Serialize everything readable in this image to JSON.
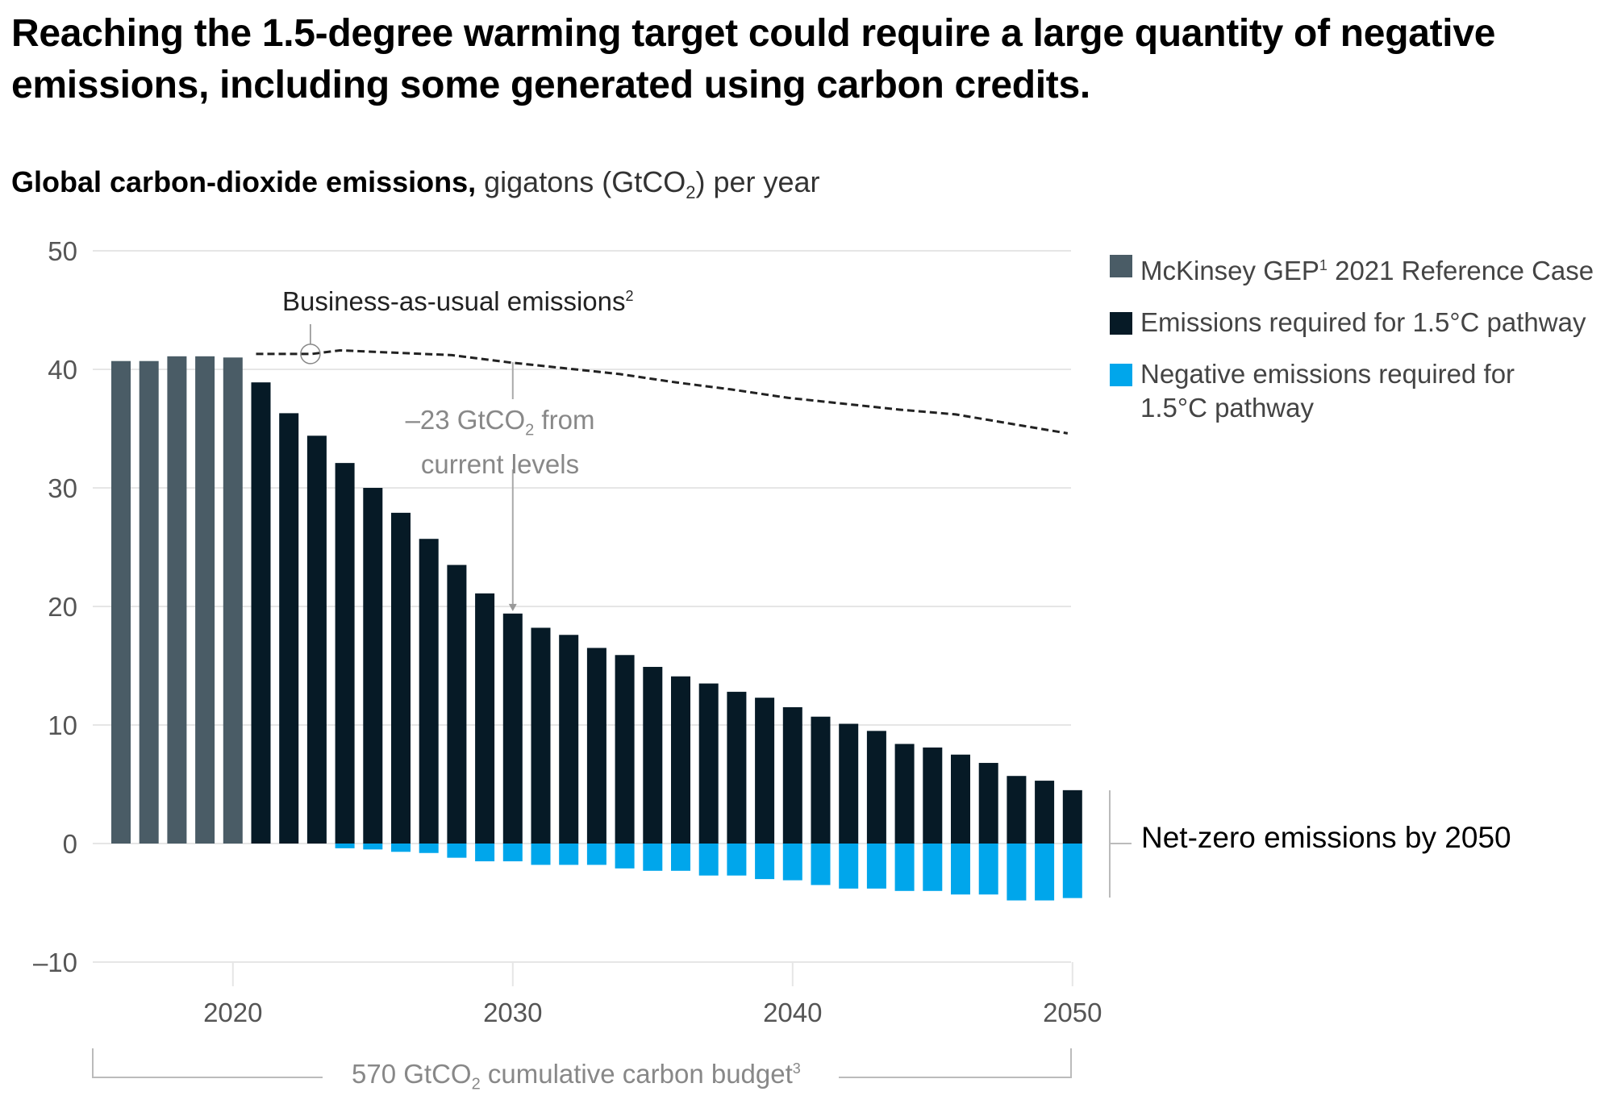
{
  "title": "Reaching the 1.5-degree warming target could require a large quantity of negative emissions, including some generated using carbon credits.",
  "subtitle": {
    "bold": "Global carbon-dioxide emissions,",
    "light_prefix": " gigatons (GtCO",
    "light_sub": "2",
    "light_suffix": ") per year"
  },
  "legend": [
    {
      "label_pre": "McKinsey GEP",
      "sup": "1",
      "label_post": " 2021 Reference Case",
      "color": "#4a5c66"
    },
    {
      "label_pre": "Emissions required for 1.5°C pathway",
      "sup": "",
      "label_post": "",
      "color": "#061a26"
    },
    {
      "label_pre": "Negative emissions required for 1.5°C pathway",
      "sup": "",
      "label_post": "",
      "color": "#00a6eb"
    }
  ],
  "annotations": {
    "bau_label": "Business-as-usual emissions",
    "bau_sup": "2",
    "delta_line1_pre": "–23 GtCO",
    "delta_line1_sub": "2",
    "delta_line1_post": " from",
    "delta_line2": "current levels",
    "net_zero": "Net-zero emissions by 2050",
    "budget_pre": "570 GtCO",
    "budget_sub": "2",
    "budget_post": " cumulative carbon budget",
    "budget_sup": "3"
  },
  "colors": {
    "reference": "#4a5c66",
    "pathway": "#061a26",
    "negative": "#00a6eb",
    "grid": "#e6e6e6",
    "bau_line": "#222222"
  },
  "chart_data": {
    "type": "bar",
    "title": "Reaching the 1.5-degree warming target could require a large quantity of negative emissions, including some generated using carbon credits.",
    "ylabel": "Global carbon-dioxide emissions, gigatons (GtCO2) per year",
    "xlabel": "",
    "ylim": [
      -10,
      50
    ],
    "yticks": [
      50,
      40,
      30,
      20,
      10,
      0,
      -10
    ],
    "ytick_labels": [
      "50",
      "40",
      "30",
      "20",
      "10",
      "0",
      "–10"
    ],
    "xticks": [
      2020,
      2030,
      2040,
      2050
    ],
    "xtick_labels": [
      "2020",
      "2030",
      "2040",
      "2050"
    ],
    "grid": true,
    "legend_position": "right",
    "x": [
      2016,
      2017,
      2018,
      2019,
      2020,
      2021,
      2022,
      2023,
      2024,
      2025,
      2026,
      2027,
      2028,
      2029,
      2030,
      2031,
      2032,
      2033,
      2034,
      2035,
      2036,
      2037,
      2038,
      2039,
      2040,
      2041,
      2042,
      2043,
      2044,
      2045,
      2046,
      2047,
      2048,
      2049,
      2050
    ],
    "series": [
      {
        "name": "McKinsey GEP 2021 Reference Case",
        "x": [
          2016,
          2017,
          2018,
          2019,
          2020
        ],
        "values": [
          40.7,
          40.7,
          41.1,
          41.1,
          41.0
        ]
      },
      {
        "name": "Emissions required for 1.5°C pathway",
        "x": [
          2021,
          2022,
          2023,
          2024,
          2025,
          2026,
          2027,
          2028,
          2029,
          2030,
          2031,
          2032,
          2033,
          2034,
          2035,
          2036,
          2037,
          2038,
          2039,
          2040,
          2041,
          2042,
          2043,
          2044,
          2045,
          2046,
          2047,
          2048,
          2049,
          2050
        ],
        "values": [
          38.9,
          36.3,
          34.4,
          32.1,
          30.0,
          27.9,
          25.7,
          23.5,
          21.1,
          19.4,
          18.2,
          17.6,
          16.5,
          15.9,
          14.9,
          14.1,
          13.5,
          12.8,
          12.3,
          11.5,
          10.7,
          10.1,
          9.5,
          8.4,
          8.1,
          7.5,
          6.8,
          5.7,
          5.3,
          4.5
        ]
      },
      {
        "name": "Negative emissions required for 1.5°C pathway",
        "x": [
          2024,
          2025,
          2026,
          2027,
          2028,
          2029,
          2030,
          2031,
          2032,
          2033,
          2034,
          2035,
          2036,
          2037,
          2038,
          2039,
          2040,
          2041,
          2042,
          2043,
          2044,
          2045,
          2046,
          2047,
          2048,
          2049,
          2050
        ],
        "values": [
          -0.4,
          -0.5,
          -0.7,
          -0.8,
          -1.2,
          -1.5,
          -1.5,
          -1.8,
          -1.8,
          -1.8,
          -2.1,
          -2.3,
          -2.3,
          -2.7,
          -2.7,
          -3.0,
          -3.1,
          -3.5,
          -3.8,
          -3.8,
          -4.0,
          -4.0,
          -4.3,
          -4.3,
          -4.8,
          -4.8,
          -4.6
        ]
      },
      {
        "name": "Business-as-usual emissions",
        "type": "line",
        "style": "dashed",
        "x": [
          2021,
          2023,
          2024,
          2026,
          2028,
          2030,
          2032,
          2034,
          2036,
          2038,
          2040,
          2042,
          2044,
          2046,
          2048,
          2050
        ],
        "values": [
          41.3,
          41.3,
          41.6,
          41.4,
          41.2,
          40.6,
          40.1,
          39.6,
          38.9,
          38.3,
          37.6,
          37.1,
          36.6,
          36.2,
          35.4,
          34.6
        ]
      }
    ],
    "annotations": [
      "Business-as-usual emissions²",
      "–23 GtCO₂ from current levels",
      "Net-zero emissions by 2050",
      "570 GtCO₂ cumulative carbon budget³"
    ]
  }
}
